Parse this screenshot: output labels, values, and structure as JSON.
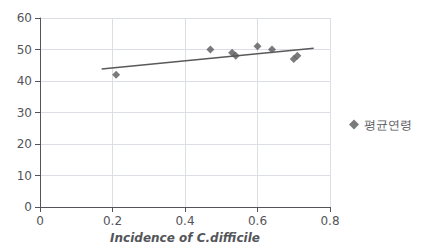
{
  "chart_data": {
    "type": "scatter",
    "xlabel": "Incidence of C.difficile",
    "series": [
      {
        "type": "line",
        "color": "#595959",
        "line_style": "solid",
        "x": [
          0.17,
          0.755
        ],
        "values": [
          43.847,
          50.433
        ]
      },
      {
        "name": "평균연령",
        "type": "scatter",
        "marker": "diamond",
        "color": "#595959",
        "x": [
          0.21,
          0.47,
          0.53,
          0.54,
          0.6,
          0.64,
          0.7,
          0.71
        ],
        "values": [
          42,
          50,
          49,
          48,
          51,
          50,
          47,
          48
        ]
      }
    ],
    "xlim": [
      0,
      0.8
    ],
    "xticks": [
      0,
      0.2,
      0.4,
      0.6,
      0.8
    ],
    "ylim": [
      0,
      60
    ],
    "yticks": [
      0,
      10,
      20,
      30,
      40,
      50,
      60
    ],
    "grid": true,
    "legend": "right"
  }
}
